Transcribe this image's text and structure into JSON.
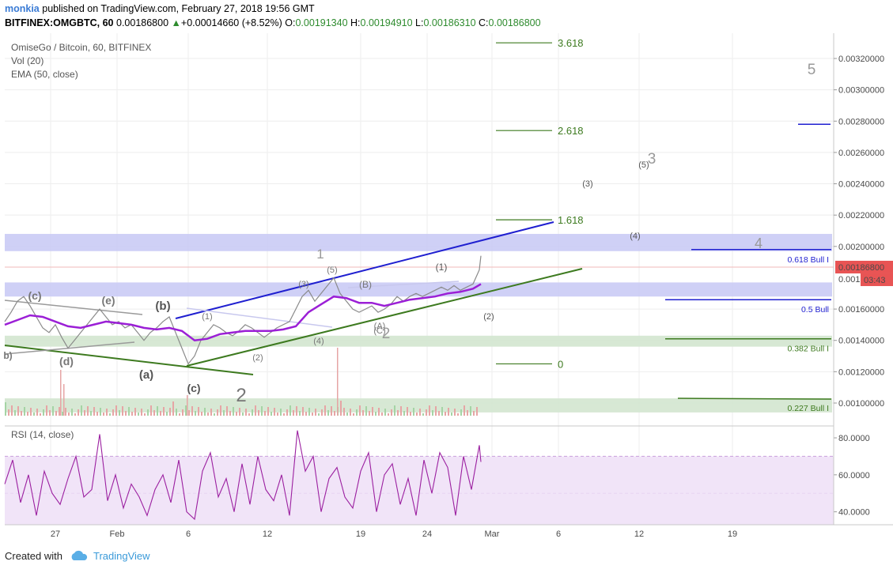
{
  "header": {
    "user": "monkia",
    "published_text": "published on TradingView.com, February 27, 2018 19:56 GMT",
    "symbol_line": "BITFINEX:OMGBTC, 60",
    "last_price": "0.00186800",
    "change": "+0.00014660 (+8.52%)",
    "o_label": "O:",
    "o_value": "0.00191340",
    "h_label": "H:",
    "h_value": "0.00194910",
    "l_label": "L:",
    "l_value": "0.00186310",
    "c_label": "C:",
    "c_value": "0.00186800"
  },
  "legend": {
    "title": "OmiseGo / Bitcoin, 60, BITFINEX",
    "vol": "Vol (20)",
    "ema": "EMA (50, close)",
    "rsi": "RSI (14, close)"
  },
  "colors": {
    "price_line": "#8a8a8a",
    "ema": "#9b1fd6",
    "blue_trend": "#1f1fd0",
    "green_trend": "#3d7a1f",
    "blue_zone": "#c7c8f4",
    "green_zone": "#d3e6cf",
    "fib": "#3d7a1f",
    "rsi_line": "#9b1fa0",
    "rsi_band": "#f1e4f8",
    "price_badge": "#e85454"
  },
  "chart_data": [
    {
      "type": "line",
      "title": "OmiseGo / Bitcoin, 60, BITFINEX",
      "x_ticks": [
        "27",
        "Feb",
        "6",
        "12",
        "19",
        "24",
        "Mar",
        "6",
        "12",
        "19"
      ],
      "y_ticks": [
        "0.00320000",
        "0.00300000",
        "0.00280000",
        "0.00260000",
        "0.00240000",
        "0.00220000",
        "0.00200000",
        "0.00160000",
        "0.00140000",
        "0.00120000",
        "0.00100000"
      ],
      "ylim": [
        0.00093,
        0.00332
      ],
      "current_price": "0.00186800",
      "countdown": "03:43",
      "price_tag_partial": "0.001",
      "series": [
        {
          "name": "",
          "x": [
            0,
            8,
            16,
            24,
            32,
            40,
            48,
            56,
            64,
            72,
            80,
            88,
            96,
            104,
            112,
            120,
            128,
            136,
            144,
            152,
            160,
            168,
            176,
            184,
            192,
            200,
            208,
            216,
            224,
            232,
            240,
            248,
            256,
            264,
            272,
            280,
            288,
            296,
            304,
            312,
            320,
            328,
            336,
            344,
            352,
            360,
            368,
            376,
            384,
            392,
            400,
            408,
            416,
            424,
            432,
            440,
            448,
            456,
            464,
            472,
            480,
            488,
            496,
            504,
            512,
            520,
            528,
            536,
            544,
            552,
            560,
            568,
            576,
            584,
            592,
            600,
            602
          ],
          "values": [
            0.00152,
            0.00158,
            0.00165,
            0.00168,
            0.00162,
            0.00155,
            0.00148,
            0.00145,
            0.0015,
            0.00142,
            0.00135,
            0.0014,
            0.00145,
            0.0015,
            0.00155,
            0.0016,
            0.00155,
            0.0015,
            0.00152,
            0.00148,
            0.0015,
            0.00145,
            0.0014,
            0.00145,
            0.00148,
            0.00152,
            0.00155,
            0.00145,
            0.00135,
            0.00125,
            0.0013,
            0.0014,
            0.00145,
            0.0015,
            0.00148,
            0.00145,
            0.00143,
            0.00146,
            0.0015,
            0.00148,
            0.00145,
            0.00142,
            0.00145,
            0.00148,
            0.0015,
            0.00152,
            0.0016,
            0.00168,
            0.00172,
            0.00165,
            0.0017,
            0.00175,
            0.0018,
            0.0017,
            0.00165,
            0.0016,
            0.00158,
            0.0016,
            0.00162,
            0.00158,
            0.0016,
            0.00163,
            0.00168,
            0.00165,
            0.00168,
            0.0017,
            0.00168,
            0.0017,
            0.00172,
            0.00174,
            0.00172,
            0.00175,
            0.00172,
            0.00174,
            0.00176,
            0.00185,
            0.00194
          ]
        },
        {
          "name": "EMA (50, close)",
          "x": [
            0,
            16,
            32,
            48,
            64,
            80,
            96,
            112,
            128,
            144,
            160,
            176,
            192,
            208,
            224,
            240,
            256,
            272,
            288,
            304,
            320,
            336,
            352,
            368,
            384,
            400,
            416,
            432,
            448,
            464,
            480,
            496,
            512,
            528,
            544,
            560,
            576,
            592,
            602
          ],
          "values": [
            0.0015,
            0.00153,
            0.00156,
            0.00155,
            0.00152,
            0.00149,
            0.00148,
            0.0015,
            0.00152,
            0.00151,
            0.0015,
            0.00148,
            0.00147,
            0.00148,
            0.00146,
            0.0014,
            0.00141,
            0.00144,
            0.00145,
            0.00146,
            0.00146,
            0.00146,
            0.00147,
            0.00149,
            0.00158,
            0.00163,
            0.00168,
            0.00167,
            0.00164,
            0.00164,
            0.00162,
            0.00164,
            0.00166,
            0.00167,
            0.00168,
            0.0017,
            0.00171,
            0.00173,
            0.00176
          ]
        }
      ],
      "fib_levels": [
        {
          "label": "3.618",
          "price": 0.0033
        },
        {
          "label": "2.618",
          "price": 0.00274
        },
        {
          "label": "1.618",
          "price": 0.00217
        },
        {
          "label": "0",
          "price": 0.00125
        }
      ],
      "target_lines": [
        {
          "label": "0.618 Bull I",
          "price": 0.00198,
          "color": "#1f1fd0"
        },
        {
          "label": "0.5 Bull",
          "price": 0.00166,
          "color": "#1f1fd0"
        },
        {
          "label": "0.382 Bull I",
          "price": 0.00141,
          "color": "#3d7a1f"
        },
        {
          "label": "0.227 Bull I",
          "price": 0.00103,
          "color": "#3d7a1f"
        }
      ],
      "wave_labels": [
        "(c)",
        "(e)",
        "(b)",
        "(d)",
        "(a)",
        "(c)",
        "2",
        "1",
        "(1)",
        "(2)",
        "(3)",
        "(4)",
        "(5)",
        "(B)",
        "(A)",
        "(C)",
        "2",
        "(1)",
        "(2)",
        "(3)",
        "(4)",
        "(5)",
        "3",
        "4",
        "5",
        "b)"
      ]
    },
    {
      "type": "line",
      "title": "RSI (14, close)",
      "y_ticks": [
        "80.0000",
        "60.0000",
        "40.0000"
      ],
      "ylim": [
        33,
        86
      ],
      "band": [
        30,
        70
      ],
      "series": [
        {
          "name": "RSI (14, close)",
          "x": [
            0,
            10,
            20,
            30,
            40,
            50,
            60,
            70,
            80,
            90,
            100,
            110,
            120,
            130,
            140,
            150,
            160,
            170,
            180,
            190,
            200,
            210,
            220,
            230,
            240,
            250,
            260,
            270,
            280,
            290,
            300,
            310,
            320,
            330,
            340,
            350,
            360,
            370,
            380,
            390,
            400,
            410,
            420,
            430,
            440,
            450,
            460,
            470,
            480,
            490,
            500,
            510,
            520,
            530,
            540,
            550,
            560,
            570,
            580,
            590,
            600,
            602
          ],
          "values": [
            55,
            68,
            45,
            60,
            38,
            62,
            50,
            44,
            58,
            70,
            48,
            52,
            82,
            46,
            60,
            42,
            55,
            48,
            38,
            52,
            60,
            45,
            68,
            40,
            36,
            62,
            72,
            48,
            58,
            40,
            66,
            44,
            70,
            52,
            46,
            60,
            38,
            84,
            62,
            70,
            40,
            58,
            64,
            48,
            42,
            62,
            72,
            40,
            60,
            66,
            44,
            58,
            38,
            68,
            50,
            72,
            64,
            38,
            70,
            52,
            76,
            67
          ]
        }
      ]
    }
  ],
  "footer": {
    "created_with": "Created with",
    "brand": "TradingView"
  }
}
